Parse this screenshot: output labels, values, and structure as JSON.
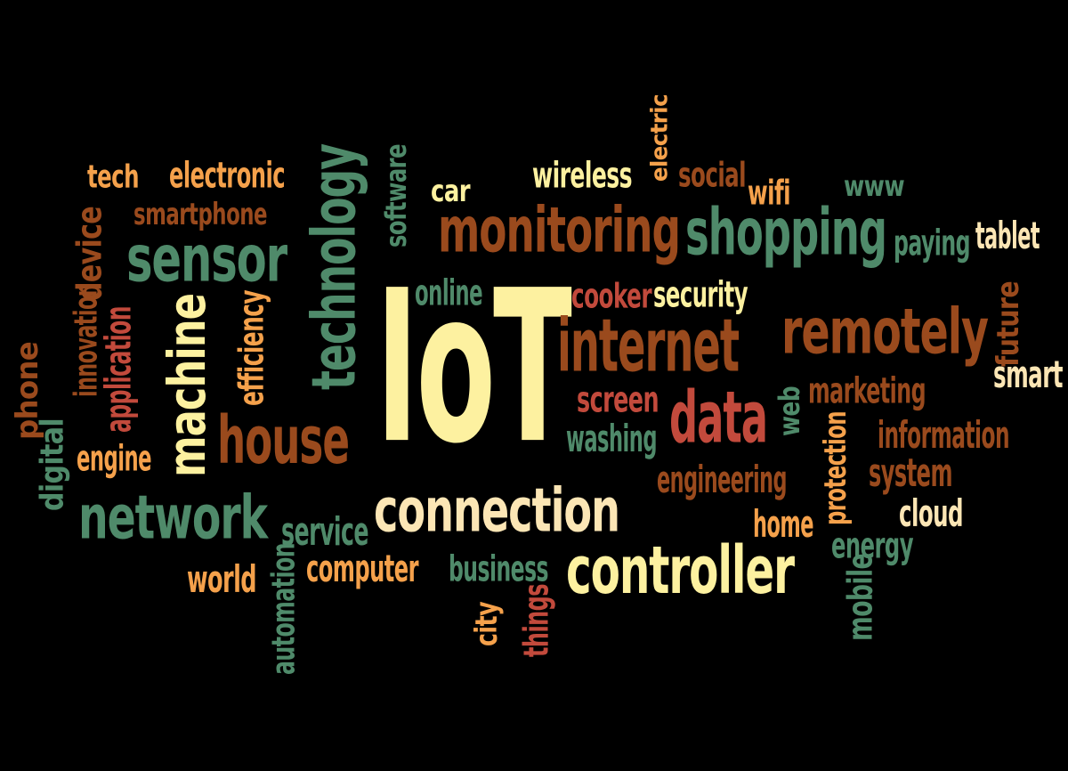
{
  "colors": {
    "background": "#000000",
    "cream": "#FDF1A0",
    "light": "#FCE6B5",
    "orange": "#F5A14B",
    "rust": "#B5552E",
    "brown": "#9A4A1D",
    "red": "#C24A3C",
    "green": "#4F8A6A"
  },
  "words": [
    {
      "text": "IoT",
      "color": "cream",
      "vertical": false
    },
    {
      "text": "connection",
      "color": "light",
      "vertical": false
    },
    {
      "text": "controller",
      "color": "cream",
      "vertical": false
    },
    {
      "text": "monitoring",
      "color": "brown",
      "vertical": false
    },
    {
      "text": "shopping",
      "color": "green",
      "vertical": false
    },
    {
      "text": "remotely",
      "color": "brown",
      "vertical": false
    },
    {
      "text": "internet",
      "color": "brown",
      "vertical": false
    },
    {
      "text": "network",
      "color": "green",
      "vertical": false
    },
    {
      "text": "house",
      "color": "brown",
      "vertical": false
    },
    {
      "text": "data",
      "color": "red",
      "vertical": false
    },
    {
      "text": "sensor",
      "color": "green",
      "vertical": false
    },
    {
      "text": "technology",
      "color": "green",
      "vertical": true
    },
    {
      "text": "machine",
      "color": "cream",
      "vertical": true
    },
    {
      "text": "tech",
      "color": "orange",
      "vertical": false
    },
    {
      "text": "electronic",
      "color": "orange",
      "vertical": false
    },
    {
      "text": "smartphone",
      "color": "brown",
      "vertical": false
    },
    {
      "text": "software",
      "color": "green",
      "vertical": true
    },
    {
      "text": "car",
      "color": "cream",
      "vertical": false
    },
    {
      "text": "wireless",
      "color": "cream",
      "vertical": false
    },
    {
      "text": "electric",
      "color": "orange",
      "vertical": true
    },
    {
      "text": "social",
      "color": "brown",
      "vertical": false
    },
    {
      "text": "wifi",
      "color": "orange",
      "vertical": false
    },
    {
      "text": "www",
      "color": "green",
      "vertical": false
    },
    {
      "text": "paying",
      "color": "green",
      "vertical": false
    },
    {
      "text": "tablet",
      "color": "light",
      "vertical": false
    },
    {
      "text": "device",
      "color": "brown",
      "vertical": true
    },
    {
      "text": "innovation",
      "color": "brown",
      "vertical": true
    },
    {
      "text": "application",
      "color": "red",
      "vertical": true
    },
    {
      "text": "phone",
      "color": "brown",
      "vertical": true
    },
    {
      "text": "digital",
      "color": "green",
      "vertical": true
    },
    {
      "text": "efficiency",
      "color": "orange",
      "vertical": true
    },
    {
      "text": "online",
      "color": "green",
      "vertical": false
    },
    {
      "text": "cooker",
      "color": "red",
      "vertical": false
    },
    {
      "text": "security",
      "color": "cream",
      "vertical": false
    },
    {
      "text": "future",
      "color": "brown",
      "vertical": true
    },
    {
      "text": "smart",
      "color": "light",
      "vertical": false
    },
    {
      "text": "marketing",
      "color": "brown",
      "vertical": false
    },
    {
      "text": "screen",
      "color": "red",
      "vertical": false
    },
    {
      "text": "washing",
      "color": "green",
      "vertical": false
    },
    {
      "text": "web",
      "color": "green",
      "vertical": true
    },
    {
      "text": "information",
      "color": "brown",
      "vertical": false
    },
    {
      "text": "protection",
      "color": "orange",
      "vertical": true
    },
    {
      "text": "engineering",
      "color": "brown",
      "vertical": false
    },
    {
      "text": "system",
      "color": "brown",
      "vertical": false
    },
    {
      "text": "engine",
      "color": "orange",
      "vertical": false
    },
    {
      "text": "cloud",
      "color": "light",
      "vertical": false
    },
    {
      "text": "home",
      "color": "orange",
      "vertical": false
    },
    {
      "text": "energy",
      "color": "green",
      "vertical": false
    },
    {
      "text": "service",
      "color": "green",
      "vertical": false
    },
    {
      "text": "computer",
      "color": "orange",
      "vertical": false
    },
    {
      "text": "business",
      "color": "green",
      "vertical": false
    },
    {
      "text": "world",
      "color": "orange",
      "vertical": false
    },
    {
      "text": "automation",
      "color": "green",
      "vertical": true
    },
    {
      "text": "city",
      "color": "orange",
      "vertical": true
    },
    {
      "text": "things",
      "color": "red",
      "vertical": true
    },
    {
      "text": "mobile",
      "color": "green",
      "vertical": true
    }
  ]
}
